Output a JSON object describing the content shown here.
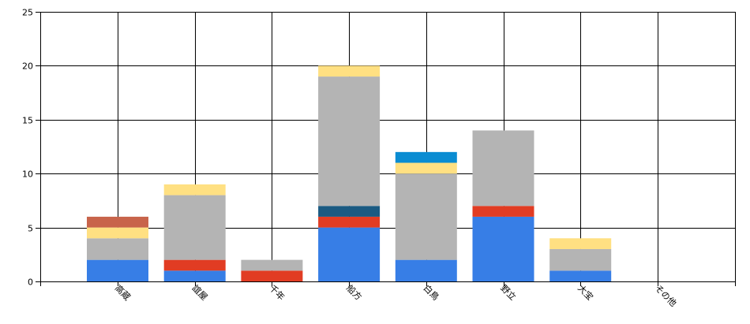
{
  "chart_data": {
    "type": "bar",
    "stacked": true,
    "categories": [
      "高蔵",
      "誼屋",
      "千年",
      "船方",
      "白鳥",
      "野立",
      "大宝",
      "その他"
    ],
    "ylim": [
      0,
      25
    ],
    "yticks": [
      0,
      5,
      10,
      15,
      20,
      25
    ],
    "grid": true,
    "legend": "none",
    "series": [
      {
        "color": "#377EE6",
        "values": [
          2,
          1,
          0,
          5,
          2,
          6,
          1,
          0
        ]
      },
      {
        "color": "#E13C23",
        "values": [
          0,
          1,
          1,
          1,
          0,
          1,
          0,
          0
        ]
      },
      {
        "color": "#1A5A82",
        "values": [
          0,
          0,
          0,
          1,
          0,
          0,
          0,
          0
        ]
      },
      {
        "color": "#B4B4B4",
        "values": [
          2,
          6,
          1,
          12,
          8,
          7,
          2,
          0
        ]
      },
      {
        "color": "#FFE082",
        "values": [
          1,
          1,
          0,
          1,
          1,
          0,
          1,
          0
        ]
      },
      {
        "color": "#0A8CD2",
        "values": [
          0,
          0,
          0,
          0,
          1,
          0,
          0,
          0
        ]
      },
      {
        "color": "#C8644B",
        "values": [
          1,
          0,
          0,
          0,
          0,
          0,
          0,
          0
        ]
      }
    ]
  }
}
